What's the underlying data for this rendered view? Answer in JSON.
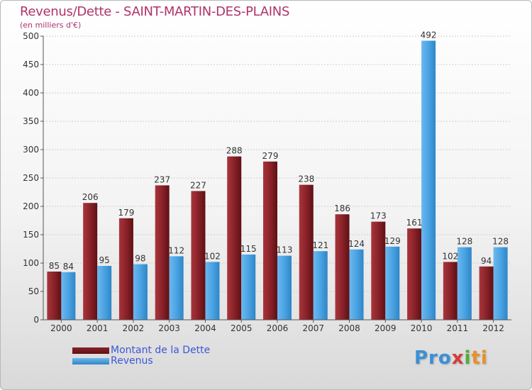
{
  "title": "Revenus/Dette - SAINT-MARTIN-DES-PLAINS",
  "subtitle": "(en milliers d'€)",
  "brand": {
    "part1": "Pro",
    "part2": "x",
    "part3": "i",
    "part4": "ti"
  },
  "colors": {
    "dette": "#7a1c22",
    "revenus": "#4aa3e3",
    "title": "#b0336a"
  },
  "chart_data": {
    "type": "bar",
    "title": "Revenus/Dette - SAINT-MARTIN-DES-PLAINS",
    "ylabel": "(en milliers d'€)",
    "ylim": [
      0,
      500
    ],
    "yticks": [
      0,
      50,
      100,
      150,
      200,
      250,
      300,
      350,
      400,
      450,
      500
    ],
    "categories": [
      "2000",
      "2001",
      "2002",
      "2003",
      "2004",
      "2005",
      "2006",
      "2007",
      "2008",
      "2009",
      "2010",
      "2011",
      "2012"
    ],
    "series": [
      {
        "name": "Montant de la Dette",
        "values": [
          85,
          206,
          179,
          237,
          227,
          288,
          279,
          238,
          186,
          173,
          161,
          102,
          94
        ]
      },
      {
        "name": "Revenus",
        "values": [
          84,
          95,
          98,
          112,
          102,
          115,
          113,
          121,
          124,
          129,
          492,
          128,
          128
        ]
      }
    ],
    "legend": [
      "Montant de la Dette",
      "Revenus"
    ],
    "grid": true
  }
}
